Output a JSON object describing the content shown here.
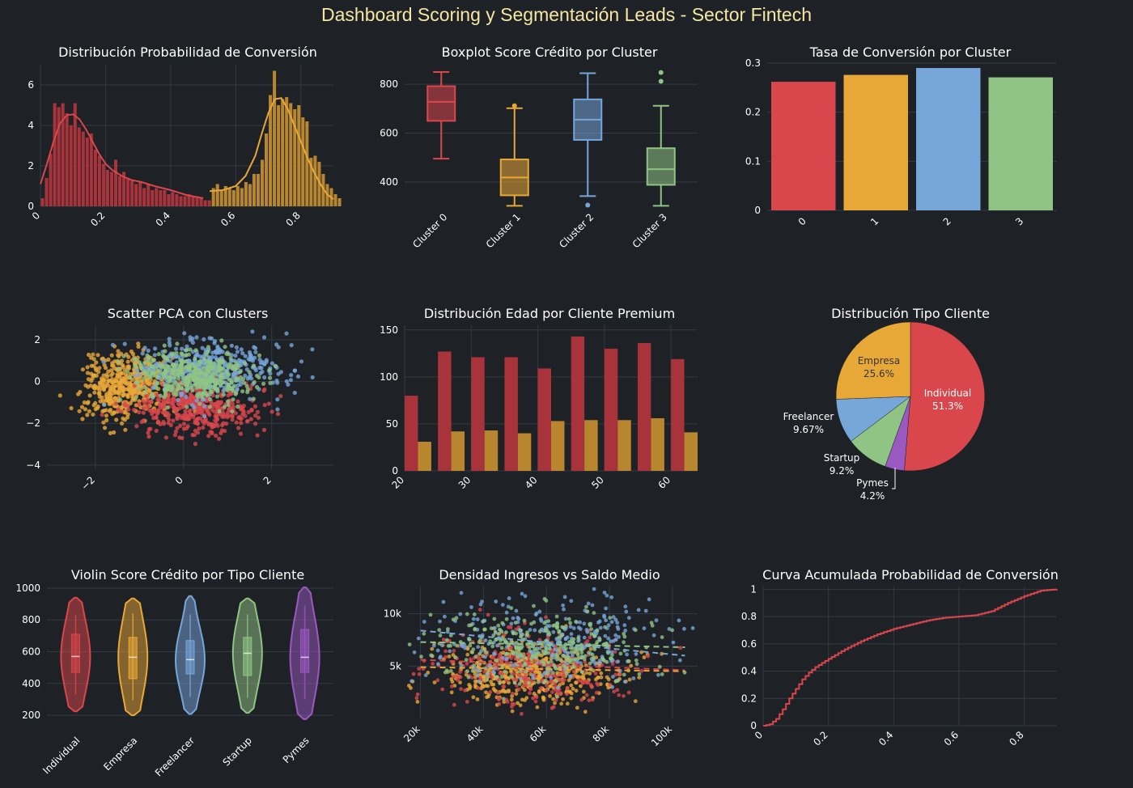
{
  "dashboard": {
    "title": "Dashboard Scoring y Segmentación Leads - Sector Fintech"
  },
  "colors": {
    "red": "#d9474c",
    "orange": "#e8a838",
    "blue": "#77a6d9",
    "green": "#8fc484",
    "purple": "#9a59c0",
    "darkred": "#a8333a",
    "gold": "#b8862e",
    "bg": "#1e2126",
    "grid": "#343a44"
  },
  "chart_data": [
    {
      "type": "histogram",
      "title": "Distribución Probabilidad de Conversión",
      "xlim": [
        0,
        0.9
      ],
      "ylim": [
        0,
        7
      ],
      "xticks": [
        0,
        0.2,
        0.4,
        0.6,
        0.8
      ],
      "yticks": [
        0,
        2,
        4,
        6
      ],
      "bin_width": 0.0125,
      "series": [
        {
          "color": "red",
          "start": 0.0,
          "values": [
            0.4,
            1.4,
            2.6,
            5.1,
            4.9,
            5.1,
            4.6,
            4.0,
            5.1,
            3.9,
            3.7,
            3.4,
            3.6,
            2.8,
            2.5,
            2.1,
            1.8,
            1.7,
            2.3,
            1.5,
            1.7,
            1.4,
            1.3,
            1.1,
            1.2,
            0.9,
            1.1,
            0.8,
            0.9,
            0.8,
            0.8,
            0.6,
            0.7,
            0.6,
            0.5,
            0.5,
            0.6,
            0.5,
            0.5,
            0.4,
            0.3,
            0.3
          ]
        },
        {
          "color": "orange",
          "start": 0.525,
          "values": [
            0.9,
            1.1,
            0.8,
            1.0,
            0.9,
            0.8,
            1.0,
            0.9,
            1.2,
            1.1,
            1.6,
            1.6,
            2.3,
            3.6,
            5.5,
            6.7,
            5.0,
            5.3,
            5.4,
            5.1,
            4.8,
            5.0,
            4.4,
            4.2,
            2.4,
            2.5,
            2.2,
            1.6,
            1.1,
            0.9,
            0.6,
            0.4
          ]
        }
      ],
      "kde": [
        {
          "color": "red",
          "x": [
            0,
            0.02,
            0.04,
            0.06,
            0.08,
            0.1,
            0.12,
            0.14,
            0.16,
            0.18,
            0.2,
            0.22,
            0.25,
            0.28,
            0.31,
            0.35,
            0.4,
            0.45,
            0.5
          ],
          "y": [
            1.1,
            2.1,
            3.2,
            4.1,
            4.5,
            4.55,
            4.3,
            3.8,
            3.2,
            2.6,
            2.1,
            1.8,
            1.5,
            1.3,
            1.2,
            1.0,
            0.8,
            0.55,
            0.4
          ]
        },
        {
          "color": "orange",
          "x": [
            0.52,
            0.56,
            0.6,
            0.63,
            0.66,
            0.68,
            0.7,
            0.72,
            0.74,
            0.76,
            0.78,
            0.8,
            0.82,
            0.84,
            0.86,
            0.88,
            0.9
          ],
          "y": [
            0.75,
            0.8,
            1.0,
            1.5,
            2.5,
            3.6,
            4.6,
            5.3,
            5.35,
            4.8,
            4.0,
            3.2,
            2.4,
            1.7,
            1.1,
            0.6,
            0.35
          ]
        }
      ]
    },
    {
      "type": "box",
      "title": "Boxplot Score Crédito por Cluster",
      "categories": [
        "Cluster 0",
        "Cluster 1",
        "Cluster 2",
        "Cluster 3"
      ],
      "ylim": [
        300,
        880
      ],
      "yticks": [
        400,
        600,
        800
      ],
      "series": [
        {
          "name": "Cluster 0",
          "color": "red",
          "min": 495,
          "q1": 650,
          "median": 728,
          "q3": 792,
          "max": 850,
          "outliers": []
        },
        {
          "name": "Cluster 1",
          "color": "orange",
          "min": 302,
          "q1": 345,
          "median": 418,
          "q3": 492,
          "max": 702,
          "outliers": [
            712
          ]
        },
        {
          "name": "Cluster 2",
          "color": "blue",
          "min": 342,
          "q1": 572,
          "median": 655,
          "q3": 738,
          "max": 845,
          "outliers": [
            305
          ]
        },
        {
          "name": "Cluster 3",
          "color": "green",
          "min": 302,
          "q1": 388,
          "median": 452,
          "q3": 538,
          "max": 712,
          "outliers": [
            812,
            848
          ]
        }
      ]
    },
    {
      "type": "bar",
      "title": "Tasa de Conversión por Cluster",
      "categories": [
        "0",
        "1",
        "2",
        "3"
      ],
      "values": [
        0.262,
        0.276,
        0.29,
        0.271
      ],
      "colors": [
        "red",
        "orange",
        "blue",
        "green"
      ],
      "ylim": [
        0,
        0.3
      ],
      "yticks": [
        0,
        0.1,
        0.2,
        0.3
      ]
    },
    {
      "type": "scatter",
      "title": "Scatter PCA con Clusters",
      "xlim": [
        -3.1,
        3.4
      ],
      "ylim": [
        -4.2,
        2.7
      ],
      "xticks": [
        -2,
        0,
        2
      ],
      "yticks": [
        -4,
        -2,
        0,
        2
      ],
      "series": [
        {
          "color": "orange",
          "n": 450,
          "mx": -1.3,
          "my": -0.2,
          "sx": 0.5,
          "sy": 0.8
        },
        {
          "color": "red",
          "n": 420,
          "mx": 0.3,
          "my": -1.3,
          "sx": 0.75,
          "sy": 0.65
        },
        {
          "color": "blue",
          "n": 420,
          "mx": 0.6,
          "my": 0.6,
          "sx": 0.85,
          "sy": 0.7
        },
        {
          "color": "green",
          "n": 420,
          "mx": 0.2,
          "my": 0.3,
          "sx": 0.7,
          "sy": 0.55
        }
      ]
    },
    {
      "type": "bar",
      "title": "Distribución Edad por Cliente Premium",
      "x": [
        20,
        25,
        30,
        35,
        40,
        45,
        50,
        55,
        60
      ],
      "series": [
        {
          "color": "darkred",
          "values": [
            80,
            127,
            121,
            121,
            109,
            143,
            130,
            136,
            119
          ]
        },
        {
          "color": "gold",
          "values": [
            31,
            42,
            43,
            40,
            53,
            54,
            54,
            56,
            41
          ]
        }
      ],
      "xlim": [
        20,
        64
      ],
      "ylim": [
        0,
        155
      ],
      "xticks": [
        20,
        30,
        40,
        50,
        60
      ],
      "yticks": [
        0,
        50,
        100,
        150
      ]
    },
    {
      "type": "pie",
      "title": "Distribución Tipo Cliente",
      "labels": [
        "Individual",
        "Pymes",
        "Startup",
        "Freelancer",
        "Empresa"
      ],
      "display": [
        "51.3%",
        "4.2%",
        "9.2%",
        "9.67%",
        "25.6%"
      ],
      "values": [
        51.3,
        4.2,
        9.2,
        9.67,
        25.6
      ],
      "colors": [
        "red",
        "purple",
        "green",
        "blue",
        "orange"
      ]
    },
    {
      "type": "violin",
      "title": "Violin Score Crédito por Tipo Cliente",
      "categories": [
        "Individual",
        "Empresa",
        "Freelancer",
        "Startup",
        "Pymes"
      ],
      "colors": [
        "red",
        "orange",
        "blue",
        "green",
        "purple"
      ],
      "ylim": [
        180,
        1010
      ],
      "yticks": [
        200,
        400,
        600,
        800,
        1000
      ],
      "series": [
        {
          "min": 225,
          "max": 940,
          "q1": 470,
          "median": 570,
          "q3": 710,
          "wlo": 330,
          "whi": 835
        },
        {
          "min": 200,
          "max": 935,
          "q1": 430,
          "median": 565,
          "q3": 690,
          "wlo": 295,
          "whi": 840
        },
        {
          "min": 208,
          "max": 950,
          "q1": 460,
          "median": 550,
          "q3": 670,
          "wlo": 315,
          "whi": 835
        },
        {
          "min": 215,
          "max": 935,
          "q1": 450,
          "median": 590,
          "q3": 690,
          "wlo": 310,
          "whi": 835
        },
        {
          "min": 175,
          "max": 1005,
          "q1": 470,
          "median": 565,
          "q3": 740,
          "wlo": 300,
          "whi": 890
        }
      ]
    },
    {
      "type": "scatter",
      "title": "Densidad Ingresos vs Saldo Medio",
      "xlim": [
        16000,
        108000
      ],
      "ylim": [
        0,
        12600
      ],
      "xticks": [
        20000,
        40000,
        60000,
        80000,
        100000
      ],
      "xtick_labels": [
        "20k",
        "40k",
        "60k",
        "80k",
        "100k"
      ],
      "yticks": [
        5000,
        10000
      ],
      "ytick_labels": [
        "5k",
        "10k"
      ],
      "series": [
        {
          "color": "orange",
          "n": 450,
          "mx": 55000,
          "my": 4200,
          "sx": 15000,
          "sy": 1400
        },
        {
          "color": "red",
          "n": 320,
          "mx": 55000,
          "my": 4800,
          "sx": 16000,
          "sy": 1800
        },
        {
          "color": "blue",
          "n": 300,
          "mx": 62000,
          "my": 7500,
          "sx": 18000,
          "sy": 2200
        },
        {
          "color": "green",
          "n": 300,
          "mx": 58000,
          "my": 6600,
          "sx": 17000,
          "sy": 1800
        }
      ],
      "trend_lines": [
        {
          "color": "blue",
          "x": [
            20000,
            104000
          ],
          "y": [
            8400,
            6000
          ]
        },
        {
          "color": "green",
          "x": [
            20000,
            104000
          ],
          "y": [
            7300,
            6800
          ]
        },
        {
          "color": "red",
          "x": [
            20000,
            104000
          ],
          "y": [
            5600,
            4600
          ]
        },
        {
          "color": "orange",
          "x": [
            20000,
            104000
          ],
          "y": [
            4900,
            4500
          ]
        }
      ]
    },
    {
      "type": "line",
      "title": "Curva Acumulada Probabilidad de Conversión",
      "x": [
        0,
        0.02,
        0.04,
        0.06,
        0.08,
        0.1,
        0.12,
        0.14,
        0.16,
        0.18,
        0.2,
        0.25,
        0.3,
        0.35,
        0.4,
        0.45,
        0.5,
        0.55,
        0.6,
        0.65,
        0.7,
        0.75,
        0.8,
        0.85,
        0.9
      ],
      "y": [
        0,
        0.01,
        0.05,
        0.12,
        0.2,
        0.27,
        0.34,
        0.39,
        0.43,
        0.46,
        0.49,
        0.56,
        0.62,
        0.67,
        0.71,
        0.74,
        0.77,
        0.79,
        0.8,
        0.81,
        0.84,
        0.9,
        0.95,
        0.99,
        1.0
      ],
      "color": "red",
      "xlim": [
        0,
        0.9
      ],
      "ylim": [
        0,
        1.02
      ],
      "xticks": [
        0,
        0.2,
        0.4,
        0.6,
        0.8
      ],
      "yticks": [
        0,
        0.2,
        0.4,
        0.6,
        0.8,
        1
      ]
    }
  ]
}
